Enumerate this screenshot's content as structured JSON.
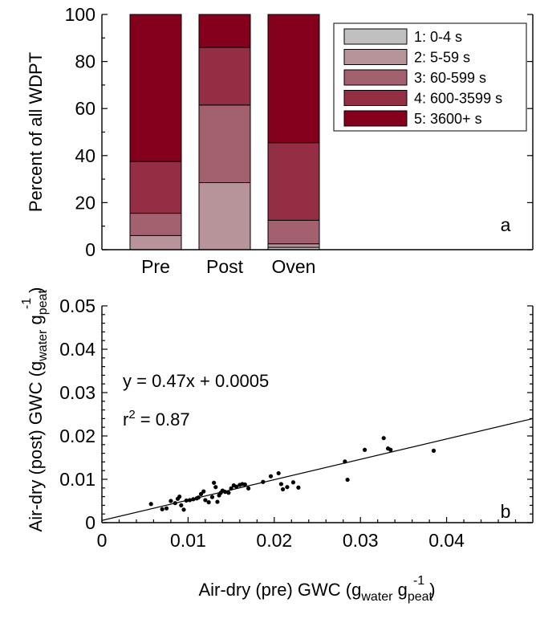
{
  "colors": {
    "seg1": "#c0c0c0",
    "seg2": "#b69499",
    "seg3": "#a3606e",
    "seg4": "#932e44",
    "seg5": "#85001d"
  },
  "chart_data": [
    {
      "type": "bar",
      "stacked": true,
      "panel_label": "a",
      "ylabel": "Percent of all WDPT",
      "ylim": [
        0,
        100
      ],
      "yticks": [
        0,
        20,
        40,
        60,
        80,
        100
      ],
      "categories": [
        "Pre",
        "Post",
        "Oven"
      ],
      "legend_position": "top-right",
      "series": [
        {
          "name": "1: 0-4 s",
          "values": [
            0,
            0,
            1
          ]
        },
        {
          "name": "2: 5-59 s",
          "values": [
            6,
            28.5,
            1.5
          ]
        },
        {
          "name": "3: 60-599 s",
          "values": [
            9.5,
            33,
            10
          ]
        },
        {
          "name": "4: 600-3599 s",
          "values": [
            22,
            24.5,
            33
          ]
        },
        {
          "name": "5: 3600+ s",
          "values": [
            62.5,
            14,
            54.5
          ]
        }
      ]
    },
    {
      "type": "scatter",
      "panel_label": "b",
      "xlabel": "Air-dry (pre) GWC (g",
      "xlabel_sub1": "water",
      "xlabel_mid": " g",
      "xlabel_sub2": "peat",
      "xlabel_sup": "-1",
      "xlabel_end": ")",
      "ylabel": "Air-dry (post) GWC (g",
      "ylabel_sub1": "water",
      "ylabel_mid": " g",
      "ylabel_sub2": "peat",
      "ylabel_sup": "-1",
      "ylabel_end": ")",
      "xlim": [
        0,
        0.05
      ],
      "ylim": [
        0,
        0.05
      ],
      "xticks": [
        0,
        0.01,
        0.02,
        0.03,
        0.04
      ],
      "xticklabels": [
        "0",
        "0.01",
        "0.02",
        "0.03",
        "0.04"
      ],
      "yticks": [
        0,
        0.01,
        0.02,
        0.03,
        0.04,
        0.05
      ],
      "yticklabels": [
        "0",
        "0.01",
        "0.02",
        "0.03",
        "0.04",
        "0.05"
      ],
      "equation": "y = 0.47x + 0.0005",
      "r2_label": "r",
      "r2_sup": "2",
      "r2_value": " = 0.87",
      "fit": {
        "slope": 0.47,
        "intercept": 0.0005
      },
      "points": [
        [
          0.0057,
          0.0043
        ],
        [
          0.007,
          0.0031
        ],
        [
          0.0075,
          0.0033
        ],
        [
          0.008,
          0.005
        ],
        [
          0.0085,
          0.0045
        ],
        [
          0.0088,
          0.0055
        ],
        [
          0.009,
          0.006
        ],
        [
          0.0092,
          0.004
        ],
        [
          0.0095,
          0.003
        ],
        [
          0.0098,
          0.0051
        ],
        [
          0.0102,
          0.0052
        ],
        [
          0.0106,
          0.0054
        ],
        [
          0.011,
          0.0056
        ],
        [
          0.0112,
          0.0058
        ],
        [
          0.0115,
          0.0066
        ],
        [
          0.0118,
          0.0072
        ],
        [
          0.012,
          0.0052
        ],
        [
          0.0124,
          0.0047
        ],
        [
          0.0128,
          0.0059
        ],
        [
          0.013,
          0.0092
        ],
        [
          0.0132,
          0.0082
        ],
        [
          0.0134,
          0.0048
        ],
        [
          0.0136,
          0.0063
        ],
        [
          0.0138,
          0.0069
        ],
        [
          0.014,
          0.0074
        ],
        [
          0.0143,
          0.0071
        ],
        [
          0.0147,
          0.0069
        ],
        [
          0.015,
          0.0079
        ],
        [
          0.0153,
          0.0086
        ],
        [
          0.0156,
          0.0083
        ],
        [
          0.016,
          0.0087
        ],
        [
          0.0163,
          0.0089
        ],
        [
          0.0166,
          0.0088
        ],
        [
          0.017,
          0.0079
        ],
        [
          0.0187,
          0.0094
        ],
        [
          0.0196,
          0.0107
        ],
        [
          0.0205,
          0.0114
        ],
        [
          0.0208,
          0.0089
        ],
        [
          0.021,
          0.0077
        ],
        [
          0.0215,
          0.0082
        ],
        [
          0.0222,
          0.0093
        ],
        [
          0.0228,
          0.0081
        ],
        [
          0.0282,
          0.0141
        ],
        [
          0.0285,
          0.0099
        ],
        [
          0.0305,
          0.0168
        ],
        [
          0.0327,
          0.0195
        ],
        [
          0.0332,
          0.0171
        ],
        [
          0.0335,
          0.0168
        ],
        [
          0.0385,
          0.0166
        ]
      ]
    }
  ]
}
